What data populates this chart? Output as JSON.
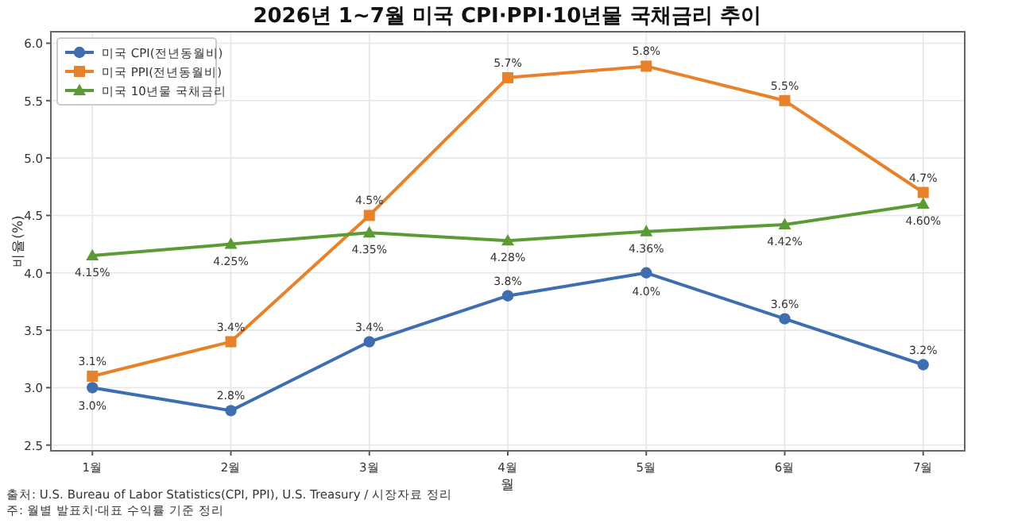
{
  "chart_data": {
    "type": "line",
    "title": "2026년 1~7월 미국 CPI·PPI·10년물 국채금리 추이",
    "xlabel": "월",
    "ylabel": "비율(%)",
    "categories": [
      "1월",
      "2월",
      "3월",
      "4월",
      "5월",
      "6월",
      "7월"
    ],
    "ylim": [
      2.45,
      6.1
    ],
    "yticks": [
      {
        "value": 2.5,
        "label": "2.5"
      },
      {
        "value": 3.0,
        "label": "3.0"
      },
      {
        "value": 3.5,
        "label": "3.5"
      },
      {
        "value": 4.0,
        "label": "4.0"
      },
      {
        "value": 4.5,
        "label": "4.5"
      },
      {
        "value": 5.0,
        "label": "5.0"
      },
      {
        "value": 5.5,
        "label": "5.5"
      },
      {
        "value": 6.0,
        "label": "6.0"
      }
    ],
    "grid": true,
    "legend": "top left",
    "line_style": "solid",
    "series": [
      {
        "name": "미국 CPI(전년동월비)",
        "color": "#3f6eb0",
        "marker": "circle",
        "values": [
          3.0,
          2.8,
          3.4,
          3.8,
          4.0,
          3.6,
          3.2
        ],
        "value_labels": [
          "3.0%",
          "2.8%",
          "3.4%",
          "3.8%",
          "4.0%",
          "3.6%",
          "3.2%"
        ]
      },
      {
        "name": "미국 PPI(전년동월비)",
        "color": "#e8822a",
        "marker": "square",
        "values": [
          3.1,
          3.4,
          4.5,
          5.7,
          5.8,
          5.5,
          4.7
        ],
        "value_labels": [
          "3.1%",
          "3.4%",
          "4.5%",
          "5.7%",
          "5.8%",
          "5.5%",
          "4.7%"
        ]
      },
      {
        "name": "미국 10년물 국채금리",
        "color": "#5b9a35",
        "marker": "triangle",
        "values": [
          4.15,
          4.25,
          4.35,
          4.28,
          4.36,
          4.42,
          4.6
        ],
        "value_labels": [
          "4.15%",
          "4.25%",
          "4.35%",
          "4.28%",
          "4.36%",
          "4.42%",
          "4.60%"
        ]
      }
    ],
    "annotations": [
      "출처: U.S. Bureau of Labor Statistics(CPI, PPI), U.S. Treasury / 시장자료 정리",
      "주: 월별 발표치·대표 수익률 기준 정리"
    ]
  }
}
